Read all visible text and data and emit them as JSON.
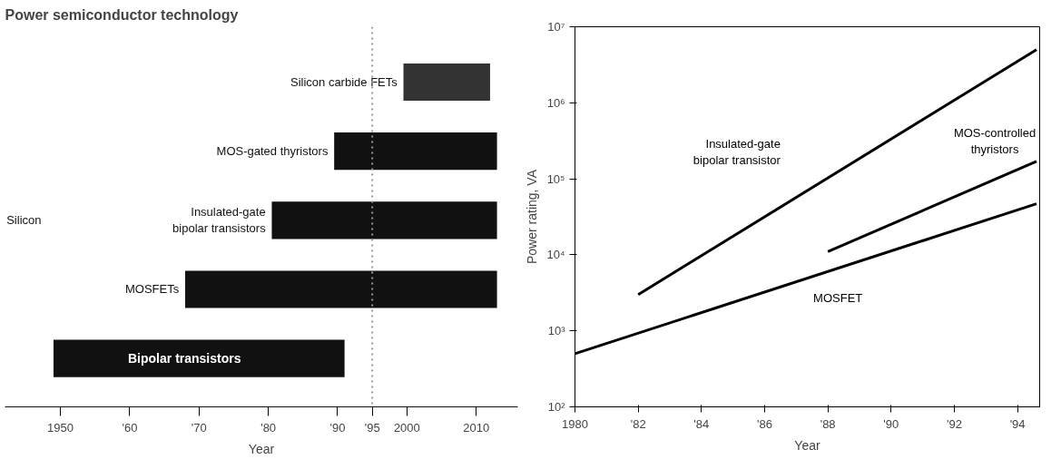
{
  "chart_data": [
    {
      "type": "bar",
      "orientation": "horizontal",
      "title": "Power semiconductor technology",
      "xlabel": "Year",
      "categories": [
        "Silicon carbide FETs",
        "MOS-gated thyristors",
        "Insulated-gate\nbipolar transistors",
        "MOSFETs",
        "Bipolar transistors"
      ],
      "base": [
        1999.5,
        1989.5,
        1980.5,
        1968,
        1949
      ],
      "values": [
        12.5,
        23.5,
        32.5,
        45,
        42
      ],
      "colors": [
        "#333333",
        "#111111",
        "#111111",
        "#111111",
        "#111111"
      ],
      "xlim": [
        1942,
        2016
      ],
      "xticks": [
        1950,
        {
          "value": 1960,
          "label": "'60"
        },
        {
          "value": 1970,
          "label": "'70"
        },
        {
          "value": 1980,
          "label": "'80"
        },
        {
          "value": 1990,
          "label": "'90"
        },
        {
          "value": 1995,
          "label": "'95"
        },
        2000,
        2010
      ],
      "ref_lines": [
        {
          "axis": "x",
          "value": 1995,
          "color": "#999999",
          "line_style": "dotted"
        }
      ],
      "annotations": [
        "Silicon"
      ],
      "tick_labels": "x",
      "grid": false
    },
    {
      "type": "line",
      "xlabel": "Year",
      "ylabel": "Power rating, VA",
      "log": true,
      "xlim": [
        1980,
        1994.7
      ],
      "ylim": [
        100,
        10000000
      ],
      "xticks": [
        1980,
        {
          "value": 1982,
          "label": "'82"
        },
        {
          "value": 1984,
          "label": "'84"
        },
        {
          "value": 1986,
          "label": "'86"
        },
        {
          "value": 1988,
          "label": "'88"
        },
        {
          "value": 1990,
          "label": "'90"
        },
        {
          "value": 1992,
          "label": "'92"
        },
        {
          "value": 1994,
          "label": "'94"
        }
      ],
      "yticks": [
        {
          "value": 100,
          "label": "10²"
        },
        {
          "value": 1000,
          "label": "10³"
        },
        {
          "value": 10000,
          "label": "10⁴"
        },
        {
          "value": 100000,
          "label": "10⁵"
        },
        {
          "value": 1000000,
          "label": "10⁶"
        },
        {
          "value": 10000000,
          "label": "10⁷"
        }
      ],
      "series": [
        {
          "name": "Insulated-gate\nbipolar transistor",
          "color": "#000000",
          "x": [
            1982,
            1994.6
          ],
          "values": [
            3000,
            5000000
          ]
        },
        {
          "name": "MOS-controlled\nthyristors",
          "color": "#000000",
          "x": [
            1988,
            1994.6
          ],
          "values": [
            11000,
            170000
          ]
        },
        {
          "name": "MOSFET",
          "color": "#000000",
          "x": [
            1980,
            1994.6
          ],
          "values": [
            500,
            47000
          ]
        }
      ],
      "grid": false,
      "marker": "none",
      "line_style": "solid"
    }
  ]
}
